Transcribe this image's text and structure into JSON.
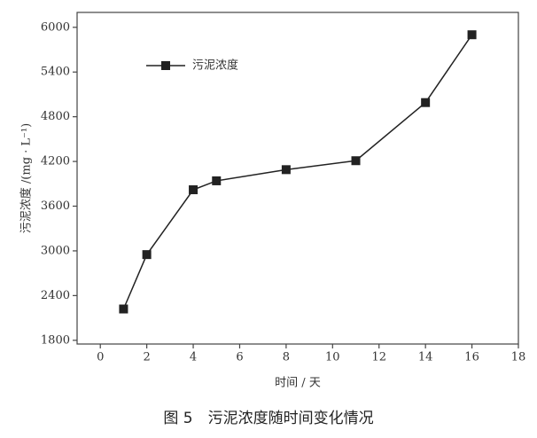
{
  "chart_data": {
    "type": "line",
    "caption": "图 5　污泥浓度随时间变化情况",
    "xlabel": "时间 / 天",
    "ylabel": "污泥浓度 /(mg · L⁻¹)",
    "x": [
      1,
      2,
      4,
      5,
      8,
      11,
      14,
      16
    ],
    "series": [
      {
        "name": "污泥浓度",
        "color": "#222222",
        "values": [
          2220,
          2950,
          3820,
          3940,
          4090,
          4210,
          4990,
          5900
        ]
      }
    ],
    "xlim": [
      -1,
      18
    ],
    "xticks": [
      0,
      2,
      4,
      6,
      8,
      10,
      12,
      14,
      16,
      18
    ],
    "ylim": [
      1750,
      6200
    ],
    "yticks": [
      1800,
      2400,
      3000,
      3600,
      4200,
      4800,
      5400,
      6000
    ],
    "legend": "upper left"
  }
}
